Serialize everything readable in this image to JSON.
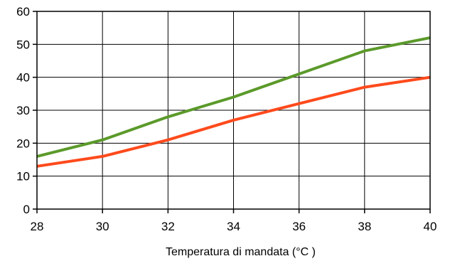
{
  "chart_data": {
    "type": "line",
    "title": "",
    "xlabel": "Temperatura di mandata (°C )",
    "ylabel": "",
    "x": [
      28,
      30,
      32,
      34,
      36,
      38,
      40
    ],
    "xlim": [
      28,
      40
    ],
    "ylim": [
      0,
      60
    ],
    "xticks": [
      "28",
      "30",
      "32",
      "34",
      "36",
      "38",
      "40"
    ],
    "yticks": [
      "0",
      "10",
      "20",
      "30",
      "40",
      "50",
      "60"
    ],
    "grid": true,
    "legend": "none",
    "series": [
      {
        "color": "#5b9a2a",
        "values": [
          16,
          21,
          28,
          34,
          41,
          48,
          52
        ]
      },
      {
        "color": "#ff4a1c",
        "values": [
          13,
          16,
          21,
          27,
          32,
          37,
          40
        ]
      }
    ]
  }
}
